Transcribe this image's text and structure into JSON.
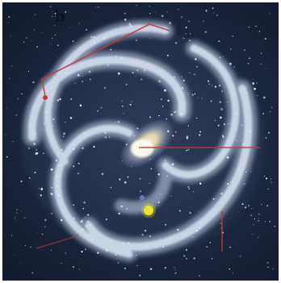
{
  "image": {
    "subject": "barred-spiral-galaxy-face-on",
    "background_color": "#182238",
    "arm_color": "#cfdcf0",
    "core_color": "#fff4c8",
    "marker_line_color": "#c0393b",
    "sun_marker_color": "#f3e12a",
    "corner_label": "b"
  }
}
